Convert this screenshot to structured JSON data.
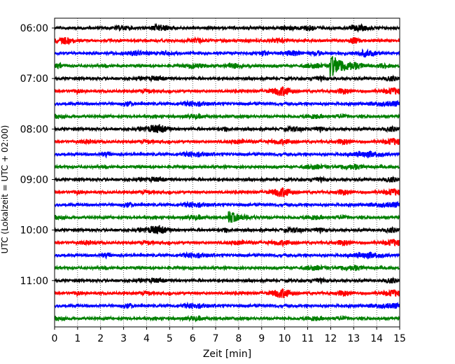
{
  "chart_data": {
    "type": "line",
    "title": "",
    "xlabel": "Zeit  [min]",
    "ylabel": "UTC (Lokalzeit = UTC + 02:00)",
    "xlim": [
      0,
      15
    ],
    "x_ticks": [
      0,
      1,
      2,
      3,
      4,
      5,
      6,
      7,
      8,
      9,
      10,
      11,
      12,
      13,
      14,
      15
    ],
    "y_tick_labels": [
      "06:00",
      "07:00",
      "08:00",
      "09:00",
      "10:00",
      "11:00"
    ],
    "y_tick_trace_index": [
      0,
      4,
      8,
      12,
      16,
      20
    ],
    "grid": {
      "x": true,
      "y": false,
      "style": "dotted"
    },
    "legend": "none",
    "trace_minutes": 15,
    "colors": [
      "#000000",
      "#ff0000",
      "#0000ff",
      "#008000"
    ],
    "traces": [
      {
        "start": "06:00",
        "color": "#000000"
      },
      {
        "start": "06:15",
        "color": "#ff0000"
      },
      {
        "start": "06:30",
        "color": "#0000ff"
      },
      {
        "start": "06:45",
        "color": "#008000",
        "events": [
          {
            "t": 12.0,
            "amp": 1.0
          },
          {
            "t": 7.6,
            "amp": 0.25
          }
        ]
      },
      {
        "start": "07:00",
        "color": "#000000"
      },
      {
        "start": "07:15",
        "color": "#ff0000"
      },
      {
        "start": "07:30",
        "color": "#0000ff"
      },
      {
        "start": "07:45",
        "color": "#008000"
      },
      {
        "start": "08:00",
        "color": "#000000"
      },
      {
        "start": "08:15",
        "color": "#ff0000"
      },
      {
        "start": "08:30",
        "color": "#0000ff"
      },
      {
        "start": "08:45",
        "color": "#008000"
      },
      {
        "start": "09:00",
        "color": "#000000"
      },
      {
        "start": "09:15",
        "color": "#ff0000"
      },
      {
        "start": "09:30",
        "color": "#0000ff"
      },
      {
        "start": "09:45",
        "color": "#008000",
        "events": [
          {
            "t": 7.6,
            "amp": 0.5
          }
        ]
      },
      {
        "start": "10:00",
        "color": "#000000"
      },
      {
        "start": "10:15",
        "color": "#ff0000"
      },
      {
        "start": "10:30",
        "color": "#0000ff"
      },
      {
        "start": "10:45",
        "color": "#008000"
      },
      {
        "start": "11:00",
        "color": "#000000"
      },
      {
        "start": "11:15",
        "color": "#ff0000"
      },
      {
        "start": "11:30",
        "color": "#0000ff"
      },
      {
        "start": "11:45",
        "color": "#008000"
      }
    ]
  }
}
